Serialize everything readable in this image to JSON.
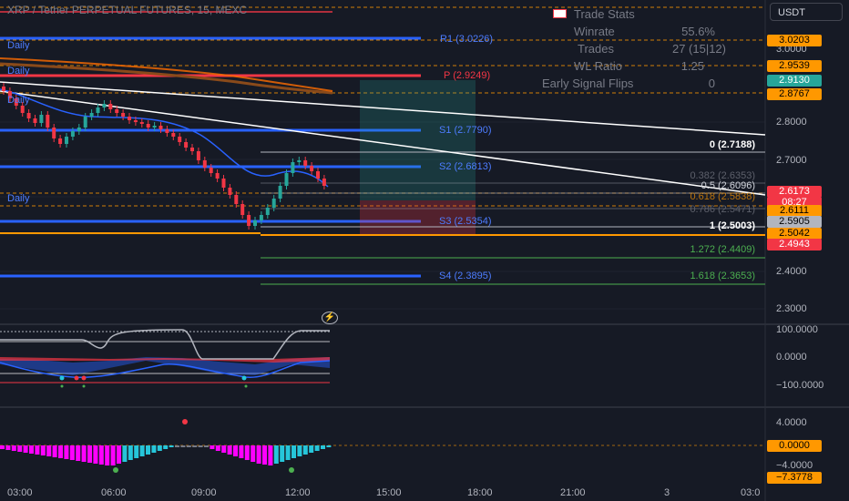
{
  "header": {
    "symbol_title": "XRP / Tether PERPETUAL FUTURES, 15, MEXC",
    "currency_button": "USDT"
  },
  "trade_stats": {
    "title": "Trade Stats",
    "rows": [
      {
        "label": "Winrate",
        "value": "55.6%"
      },
      {
        "label": "Trades",
        "value": "27 (15|12)"
      },
      {
        "label": "WL Ratio",
        "value": "1.25"
      },
      {
        "label": "Early Signal Flips",
        "value": "0"
      }
    ]
  },
  "pivot_labels": {
    "daily": "Daily",
    "r1": "R1 (3.0226)",
    "p": "P (2.9249)",
    "s1": "S1 (2.7790)",
    "s2": "S2 (2.6813)",
    "s3": "S3 (2.5354)",
    "s4": "S4 (2.3895)"
  },
  "fib_labels": {
    "f0": "0 (2.7188)",
    "f382": "0.382 (2.6353)",
    "f5": "0.5 (2.6096)",
    "f618": "0.618 (2.5838)",
    "f786": "0.786 (2.5471)",
    "f1": "1 (2.5003)",
    "f1272": "1.272 (2.4409)",
    "f1618": "1.618 (2.3653)"
  },
  "price_axis": {
    "ticks": [
      "3.0000",
      "2.8000",
      "2.7000",
      "2.4000",
      "2.3000"
    ],
    "tags": [
      {
        "text": "3.0203",
        "bg": "#ff9800",
        "fg": "#000000"
      },
      {
        "text": "2.9539",
        "bg": "#ff9800",
        "fg": "#000000"
      },
      {
        "text": "2.9130",
        "bg": "#26a69a",
        "fg": "#ffffff"
      },
      {
        "text": "2.8767",
        "bg": "#ff9800",
        "fg": "#000000"
      },
      {
        "text": "2.6173",
        "bg": "#f23645",
        "fg": "#ffffff"
      },
      {
        "text": "08:27",
        "bg": "#f23645",
        "fg": "#ffffff"
      },
      {
        "text": "2.6111",
        "bg": "#ff9800",
        "fg": "#000000"
      },
      {
        "text": "2.5905",
        "bg": "#b2b5be",
        "fg": "#000000"
      },
      {
        "text": "2.5042",
        "bg": "#ff9800",
        "fg": "#000000"
      },
      {
        "text": "2.4943",
        "bg": "#f23645",
        "fg": "#ffffff"
      }
    ]
  },
  "oscillator_axis": {
    "ticks": [
      "100.0000",
      "0.0000",
      "−100.0000"
    ]
  },
  "momentum_axis": {
    "ticks": [
      "4.0000",
      "−4.0000"
    ],
    "tags": [
      {
        "text": "0.0000",
        "bg": "#ff9800",
        "fg": "#000000"
      },
      {
        "text": "−7.3778",
        "bg": "#ff9800",
        "fg": "#000000"
      }
    ]
  },
  "time_axis": [
    "03:00",
    "06:00",
    "09:00",
    "12:00",
    "15:00",
    "18:00",
    "21:00",
    "3",
    "03:0"
  ],
  "colors": {
    "background": "#161a25",
    "up": "#26a69a",
    "down": "#f23645",
    "pivot": "#2962ff",
    "pivot_p": "#f23645",
    "ema": "#ff6d00",
    "momentum_neg": "#ff00ff",
    "momentum_pos": "#26c6da"
  },
  "icons": {
    "stats_flag": "flag-icon",
    "alert": "lightning-icon"
  }
}
